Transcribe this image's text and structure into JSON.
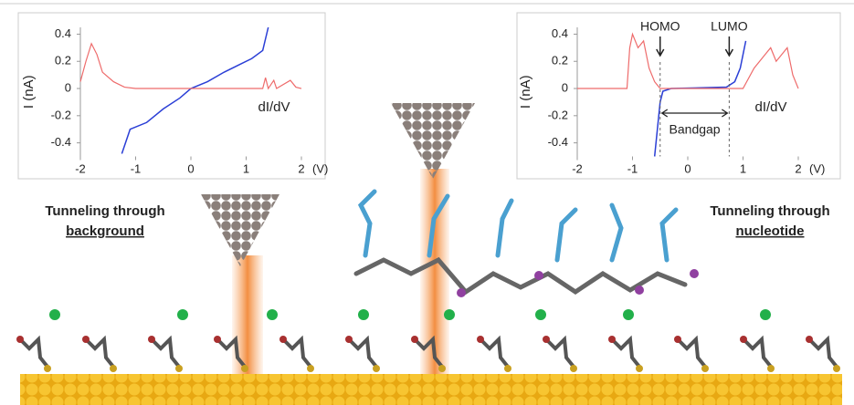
{
  "chart_data": [
    {
      "type": "line",
      "xlabel": "(V)",
      "ylabel": "I (nA)",
      "xlim": [
        -2,
        2
      ],
      "ylim": [
        -0.5,
        0.45
      ],
      "xticks": [
        -2,
        -1,
        0,
        1,
        2
      ],
      "yticks": [
        -0.4,
        -0.2,
        0,
        0.2,
        0.4
      ],
      "series": [
        {
          "color": "#2b3fd6",
          "x": [
            -1.25,
            -1.1,
            -0.8,
            -0.5,
            -0.2,
            0,
            0.3,
            0.6,
            0.9,
            1.1,
            1.3,
            1.4
          ],
          "values": [
            -0.48,
            -0.3,
            -0.25,
            -0.15,
            -0.07,
            0,
            0.05,
            0.12,
            0.18,
            0.22,
            0.28,
            0.45
          ]
        },
        {
          "name": "dI/dV",
          "color": "#ee6b6b",
          "x": [
            -2,
            -1.9,
            -1.8,
            -1.7,
            -1.6,
            -1.4,
            -1.2,
            -1,
            1.3,
            1.35,
            1.4,
            1.5,
            1.55,
            1.8,
            1.9,
            2
          ],
          "values": [
            0.05,
            0.2,
            0.33,
            0.25,
            0.12,
            0.05,
            0.01,
            0,
            0,
            0.08,
            0,
            0.06,
            0,
            0.06,
            0.01,
            0
          ]
        }
      ]
    },
    {
      "type": "line",
      "xlabel": "(V)",
      "ylabel": "I (nA)",
      "xlim": [
        -2,
        2
      ],
      "ylim": [
        -0.5,
        0.45
      ],
      "xticks": [
        -2,
        -1,
        0,
        1,
        2
      ],
      "yticks": [
        -0.4,
        -0.2,
        0,
        0.2,
        0.4
      ],
      "series": [
        {
          "color": "#2b3fd6",
          "x": [
            -0.6,
            -0.5,
            -0.45,
            -0.3,
            0.7,
            0.85,
            0.95,
            1.05
          ],
          "values": [
            -0.5,
            -0.1,
            -0.02,
            0,
            0.01,
            0.05,
            0.15,
            0.35
          ]
        },
        {
          "name": "dI/dV",
          "color": "#ee6b6b",
          "x": [
            -2,
            -1.1,
            -1.05,
            -1,
            -0.9,
            -0.8,
            -0.7,
            -0.6,
            -0.5,
            1,
            1.2,
            1.4,
            1.5,
            1.6,
            1.8,
            1.9,
            2
          ],
          "values": [
            0,
            0,
            0.3,
            0.4,
            0.3,
            0.35,
            0.15,
            0.05,
            0,
            0,
            0.15,
            0.25,
            0.3,
            0.2,
            0.3,
            0.1,
            0
          ]
        }
      ],
      "markers": [
        {
          "label": "HOMO",
          "x": -0.5
        },
        {
          "label": "LUMO",
          "x": 0.75
        }
      ],
      "span_label": "Bandgap"
    }
  ],
  "labels": {
    "left": [
      "Tunneling through",
      "background"
    ],
    "right": [
      "Tunneling through",
      "nucleotide"
    ]
  }
}
